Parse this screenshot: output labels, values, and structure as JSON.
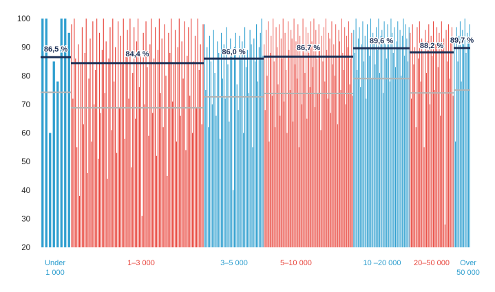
{
  "chart_data": {
    "type": "bar",
    "title": "",
    "xlabel": "",
    "ylabel": "",
    "ylim": [
      20,
      100
    ],
    "yticks": [
      20,
      30,
      40,
      50,
      60,
      70,
      80,
      90,
      100
    ],
    "colors": {
      "blue": "#2f9fcf",
      "red": "#e8453c",
      "mean_line": "#1c2f55",
      "reference_line": "#b4b4b4"
    },
    "groups": [
      {
        "label": [
          "Under",
          "1 000"
        ],
        "color": "blue",
        "mean": 86.5,
        "mean_label": "86,5 %",
        "reference": 74.2,
        "values": [
          100,
          100,
          60,
          85,
          78,
          100,
          100,
          95
        ]
      },
      {
        "label": [
          "1–3 000"
        ],
        "color": "red",
        "mean": 84.4,
        "mean_label": "84,4 %",
        "reference": 68.8,
        "values": [
          98,
          72,
          100,
          86,
          55,
          91,
          38,
          84,
          97,
          63,
          88,
          100,
          46,
          79,
          93,
          57,
          99,
          70,
          82,
          100,
          51,
          95,
          67,
          89,
          100,
          74,
          92,
          44,
          86,
          97,
          61,
          100,
          78,
          90,
          53,
          99,
          69,
          94,
          84,
          100,
          58,
          88,
          96,
          72,
          100,
          48,
          81,
          97,
          65,
          92,
          100,
          76,
          87,
          31,
          95,
          70,
          99,
          83,
          59,
          91,
          100,
          67,
          86,
          97,
          52,
          89,
          100,
          74,
          93,
          62,
          98,
          80,
          45,
          95,
          88,
          100,
          71,
          84,
          96,
          57,
          90,
          100,
          66,
          92,
          79,
          99,
          54,
          87,
          97,
          73,
          100,
          60,
          85,
          94,
          69,
          100,
          82,
          91,
          63,
          98
        ]
      },
      {
        "label": [
          "3–5 000"
        ],
        "color": "blue",
        "mean": 86.0,
        "mean_label": "86,0 %",
        "reference": 72.6,
        "values": [
          98,
          75,
          90,
          62,
          94,
          85,
          70,
          96,
          81,
          66,
          92,
          88,
          58,
          95,
          79,
          91,
          72,
          97,
          84,
          64,
          93,
          87,
          40,
          90,
          95,
          77,
          68,
          94,
          86,
          92,
          60,
          97,
          83,
          89,
          74,
          96,
          91,
          55,
          93,
          85,
          98,
          78,
          90,
          95,
          100,
          87
        ]
      },
      {
        "label": [
          "5–10 000"
        ],
        "color": "red",
        "mean": 86.7,
        "mean_label": "86,7 %",
        "reference": 73.8,
        "values": [
          91,
          68,
          96,
          80,
          99,
          57,
          88,
          94,
          73,
          100,
          85,
          62,
          97,
          90,
          77,
          98,
          66,
          93,
          86,
          100,
          71,
          95,
          82,
          60,
          99,
          89,
          75,
          96,
          93,
          64,
          100,
          84,
          92,
          79,
          98,
          55,
          94,
          87,
          70,
          100,
          91,
          81,
          97,
          65,
          95,
          88,
          76,
          99,
          92,
          83,
          100,
          69,
          96,
          86,
          74,
          98,
          90,
          61,
          94,
          85,
          97,
          78,
          100,
          89,
          72,
          95,
          93,
          67,
          99,
          84,
          91,
          80,
          98,
          87,
          63,
          96,
          92,
          75,
          100,
          88,
          82,
          97,
          70,
          94,
          90,
          99,
          77,
          86,
          95,
          73
        ]
      },
      {
        "label": [
          "10 –20 000"
        ],
        "color": "blue",
        "mean": 89.6,
        "mean_label": "89,6 %",
        "reference": 79.0,
        "values": [
          96,
          88,
          100,
          82,
          93,
          97,
          76,
          91,
          99,
          85,
          94,
          72,
          98,
          90,
          87,
          100,
          79,
          95,
          92,
          84,
          97,
          89,
          100,
          81,
          94,
          96,
          74,
          99,
          91,
          86,
          98,
          93,
          78,
          100,
          95,
          88,
          97,
          83,
          92,
          99,
          90,
          96,
          80,
          94,
          100,
          87,
          98,
          93,
          85,
          97
        ]
      },
      {
        "label": [
          "20–50 000"
        ],
        "color": "red",
        "mean": 88.2,
        "mean_label": "88,2 %",
        "reference": 74.0,
        "values": [
          95,
          72,
          98,
          84,
          90,
          62,
          97,
          86,
          99,
          78,
          93,
          88,
          55,
          96,
          81,
          92,
          98,
          70,
          94,
          87,
          99,
          75,
          91,
          97,
          83,
          95,
          66,
          99,
          89,
          93,
          28,
          96,
          85,
          98,
          79,
          92,
          97,
          73
        ]
      },
      {
        "label": [
          "Over",
          "50 000"
        ],
        "color": "blue",
        "mean": 89.7,
        "mean_label": "89,7 %",
        "reference": 75.0,
        "values": [
          92,
          57,
          97,
          85,
          94,
          99,
          78,
          96,
          91,
          100,
          88,
          95,
          93,
          98
        ]
      }
    ]
  }
}
